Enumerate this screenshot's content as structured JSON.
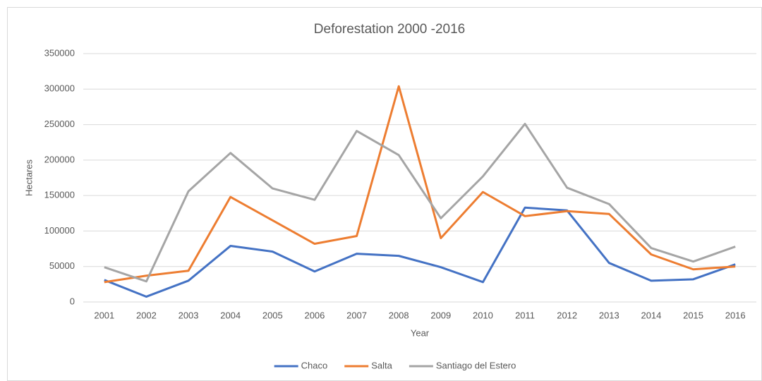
{
  "chart_data": {
    "type": "line",
    "title": "Deforestation 2000 -2016",
    "x_label": "Year",
    "y_label": "Hectares",
    "categories": [
      "2001",
      "2002",
      "2003",
      "2004",
      "2005",
      "2006",
      "2007",
      "2008",
      "2009",
      "2010",
      "2011",
      "2012",
      "2013",
      "2014",
      "2015",
      "2016"
    ],
    "series": [
      {
        "name": "Chaco",
        "color": "#4472c4",
        "values": [
          31000,
          7500,
          30000,
          79000,
          71000,
          43000,
          68000,
          65000,
          49000,
          28000,
          133000,
          129000,
          55000,
          30000,
          32000,
          53000
        ]
      },
      {
        "name": "Salta",
        "color": "#ed7d31",
        "values": [
          28000,
          37000,
          44000,
          148000,
          115000,
          82000,
          93000,
          304000,
          90000,
          155000,
          121000,
          128000,
          124000,
          67000,
          46000,
          50000
        ]
      },
      {
        "name": "Santiago del Estero",
        "color": "#a5a5a5",
        "values": [
          49000,
          29000,
          156000,
          210000,
          160000,
          144000,
          241000,
          207000,
          118000,
          177000,
          251000,
          161000,
          138000,
          76000,
          57000,
          78000
        ]
      }
    ],
    "ylim": [
      0,
      350000
    ],
    "yticks": [
      0,
      50000,
      100000,
      150000,
      200000,
      250000,
      300000,
      350000
    ],
    "grid": true,
    "legend": "bottom"
  }
}
